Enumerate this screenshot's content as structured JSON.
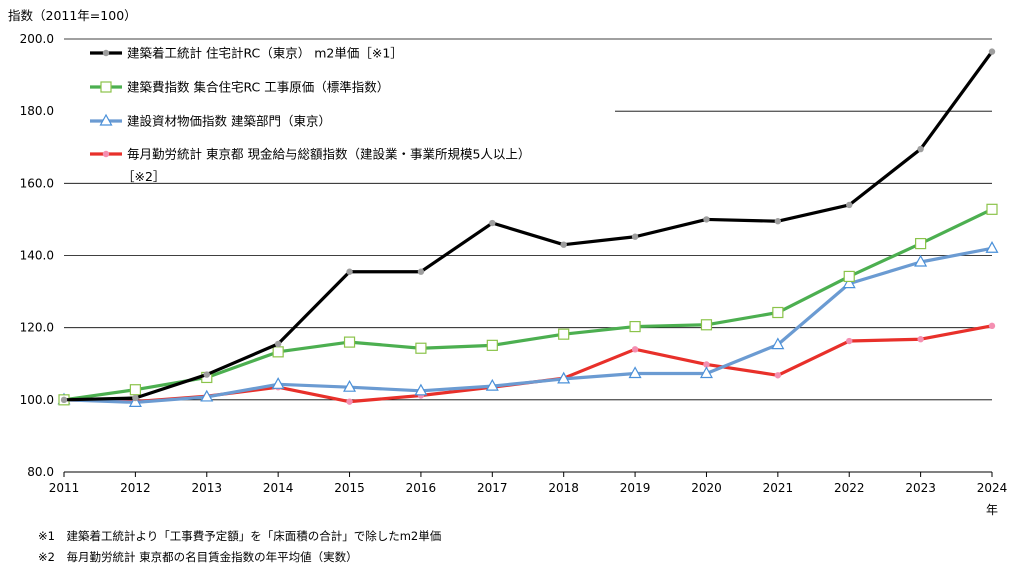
{
  "chart_data": {
    "type": "line",
    "title": "",
    "ylabel": "指数（2011年=100）",
    "xlabel": "年",
    "ylim": [
      80,
      200
    ],
    "yticks": [
      "80.0",
      "100.0",
      "120.0",
      "140.0",
      "160.0",
      "180.0",
      "200.0"
    ],
    "x": [
      "2011",
      "2012",
      "2013",
      "2014",
      "2015",
      "2016",
      "2017",
      "2018",
      "2019",
      "2020",
      "2021",
      "2022",
      "2023",
      "2024"
    ],
    "grid": true,
    "legend_position": "top-left",
    "series": [
      {
        "name": "建築着工統計 住宅計RC（東京） m2単価［※1］",
        "color": "#000000",
        "marker": "circle",
        "values": [
          100.0,
          100.5,
          107.0,
          115.5,
          135.5,
          135.5,
          149.0,
          143.0,
          145.2,
          150.0,
          149.5,
          154.0,
          169.5,
          196.5
        ]
      },
      {
        "name": "建築費指数 集合住宅RC 工事原価（標準指数）",
        "color": "#4caf50",
        "marker": "square",
        "values": [
          100.0,
          102.8,
          106.2,
          113.3,
          116.0,
          114.3,
          115.1,
          118.2,
          120.3,
          120.8,
          124.2,
          134.2,
          143.3,
          152.8
        ]
      },
      {
        "name": "建設資材物価指数 建築部門（東京）",
        "color": "#6b9bd2",
        "marker": "triangle",
        "values": [
          100.0,
          99.3,
          100.8,
          104.3,
          103.5,
          102.5,
          103.8,
          105.8,
          107.3,
          107.3,
          115.3,
          132.2,
          138.2,
          142.0
        ]
      },
      {
        "name": "毎月勤労統計 東京都 現金給与総額指数（建設業・事業所規模5人以上）",
        "name_line2": "［※2］",
        "color": "#e8302a",
        "marker": "circle-pink",
        "values": [
          100.0,
          99.5,
          101.0,
          103.5,
          99.5,
          101.2,
          103.5,
          106.0,
          114.0,
          109.8,
          106.8,
          116.3,
          116.8,
          120.5
        ]
      }
    ]
  },
  "notes": [
    "※1　建築着工統計より「工事費予定額」を「床面積の合計」で除したm2単価",
    "※2　毎月勤労統計 東京都の名目賃金指数の年平均値（実数）"
  ]
}
